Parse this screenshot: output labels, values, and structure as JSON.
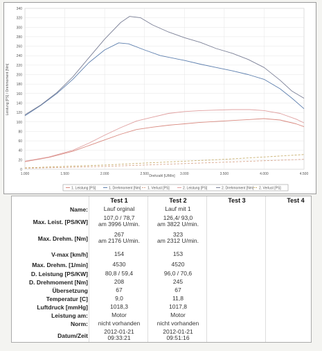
{
  "chart_data": {
    "type": "line",
    "ylabel": "Leistung [PS] / Drehmoment [Nm]",
    "xlabel": "Drehzahl [U/Min]",
    "xlim": [
      1000,
      4500
    ],
    "ylim": [
      0,
      340
    ],
    "x_ticks": [
      "1.000",
      "1.500",
      "2.000",
      "2.500",
      "3.000",
      "3.500",
      "4.000",
      "4.500"
    ],
    "y_ticks": [
      "0",
      "20",
      "40",
      "60",
      "80",
      "100",
      "120",
      "140",
      "160",
      "180",
      "200",
      "220",
      "240",
      "260",
      "280",
      "300",
      "320",
      "340"
    ],
    "legend_position": "bottom",
    "series": [
      {
        "name": "1. Leistung [PS]",
        "color": "#d98a80",
        "dash": false,
        "x": [
          1000,
          1300,
          1600,
          1800,
          2000,
          2200,
          2400,
          2600,
          2800,
          3000,
          3200,
          3400,
          3600,
          3800,
          3996,
          4200,
          4400,
          4500
        ],
        "y": [
          16,
          25,
          38,
          50,
          62,
          74,
          84,
          89,
          93,
          96,
          99,
          101,
          103,
          105,
          107,
          104,
          96,
          90
        ]
      },
      {
        "name": "1. Drehmoment [Nm]",
        "color": "#5d7fae",
        "dash": false,
        "x": [
          1000,
          1200,
          1400,
          1600,
          1800,
          2000,
          2176,
          2300,
          2500,
          2700,
          3000,
          3200,
          3400,
          3600,
          3800,
          4000,
          4200,
          4350,
          4500
        ],
        "y": [
          113,
          135,
          160,
          190,
          225,
          252,
          267,
          265,
          252,
          240,
          230,
          222,
          215,
          208,
          200,
          190,
          170,
          150,
          128
        ]
      },
      {
        "name": "1. Verlust [PS]",
        "color": "#d9a890",
        "dash": true,
        "x": [
          1000,
          1500,
          2000,
          2500,
          3000,
          3500,
          4000,
          4500
        ],
        "y": [
          2,
          4,
          6,
          9,
          12,
          15,
          18,
          21
        ]
      },
      {
        "name": "2. Leistung [PS]",
        "color": "#e0a0a0",
        "dash": false,
        "x": [
          1000,
          1300,
          1600,
          1800,
          2000,
          2200,
          2400,
          2600,
          2800,
          3000,
          3200,
          3400,
          3600,
          3822,
          4000,
          4200,
          4400,
          4500
        ],
        "y": [
          17,
          26,
          40,
          55,
          72,
          88,
          102,
          110,
          118,
          122,
          124,
          125,
          126,
          126,
          124,
          118,
          106,
          98
        ]
      },
      {
        "name": "2. Drehmoment [Nm]",
        "color": "#7a7f96",
        "dash": false,
        "x": [
          1000,
          1200,
          1400,
          1600,
          1800,
          2000,
          2200,
          2312,
          2450,
          2600,
          2800,
          3000,
          3200,
          3400,
          3600,
          3800,
          4000,
          4200,
          4350,
          4500
        ],
        "y": [
          115,
          136,
          162,
          195,
          235,
          275,
          310,
          323,
          320,
          305,
          290,
          278,
          268,
          255,
          245,
          232,
          215,
          188,
          165,
          150
        ]
      },
      {
        "name": "2. Verlust [PS]",
        "color": "#c9b070",
        "dash": true,
        "x": [
          1000,
          1500,
          2000,
          2500,
          3000,
          3500,
          4000,
          4500
        ],
        "y": [
          3,
          6,
          9,
          13,
          17,
          21,
          26,
          31
        ]
      }
    ]
  },
  "table": {
    "headers": [
      "",
      "Test 1",
      "Test 2",
      "Test 3",
      "Test 4"
    ],
    "rows": [
      {
        "label": "Name:",
        "t1": [
          "Lauf orginal"
        ],
        "t2": [
          "Lauf mit 1"
        ]
      },
      {
        "label": "Max. Leist. [PS/KW]",
        "t1": [
          "107,0 / 78,7",
          "am 3996 U/min."
        ],
        "t2": [
          "126,4/ 93,0",
          "am 3822 U/min."
        ]
      },
      {
        "label": "Max. Drehm. [Nm]",
        "t1": [
          "267",
          "am 2176 U/min."
        ],
        "t2": [
          "323",
          "am 2312 U/min."
        ]
      },
      {
        "label": "V-max [km/h]",
        "t1": [
          "154"
        ],
        "t2": [
          "153"
        ]
      },
      {
        "label": "Max. Drehm. [1/min]",
        "t1": [
          "4530"
        ],
        "t2": [
          "4520"
        ]
      },
      {
        "label": "D. Leistung [PS/KW]",
        "t1": [
          "80,8 / 59,4"
        ],
        "t2": [
          "96,0 / 70,6"
        ]
      },
      {
        "label": "D. Drehmoment [Nm]",
        "t1": [
          "208"
        ],
        "t2": [
          "245"
        ]
      },
      {
        "label": "Übersetzung",
        "t1": [
          "67"
        ],
        "t2": [
          "67"
        ]
      },
      {
        "label": "Temperatur [C]",
        "t1": [
          "9,0"
        ],
        "t2": [
          "11,8"
        ]
      },
      {
        "label": "Luftdruck [mmHg]",
        "t1": [
          "1018,3"
        ],
        "t2": [
          "1017,8"
        ]
      },
      {
        "label": "Leistung am:",
        "t1": [
          "Motor"
        ],
        "t2": [
          "Motor"
        ]
      },
      {
        "label": "Norm:",
        "t1": [
          "nicht vorhanden"
        ],
        "t2": [
          "nicht vorhanden"
        ]
      },
      {
        "label": "Datum/Zeit",
        "t1": [
          "2012-01-21",
          "09:33:21"
        ],
        "t2": [
          "2012-01-21",
          "09:51:16"
        ]
      }
    ]
  }
}
